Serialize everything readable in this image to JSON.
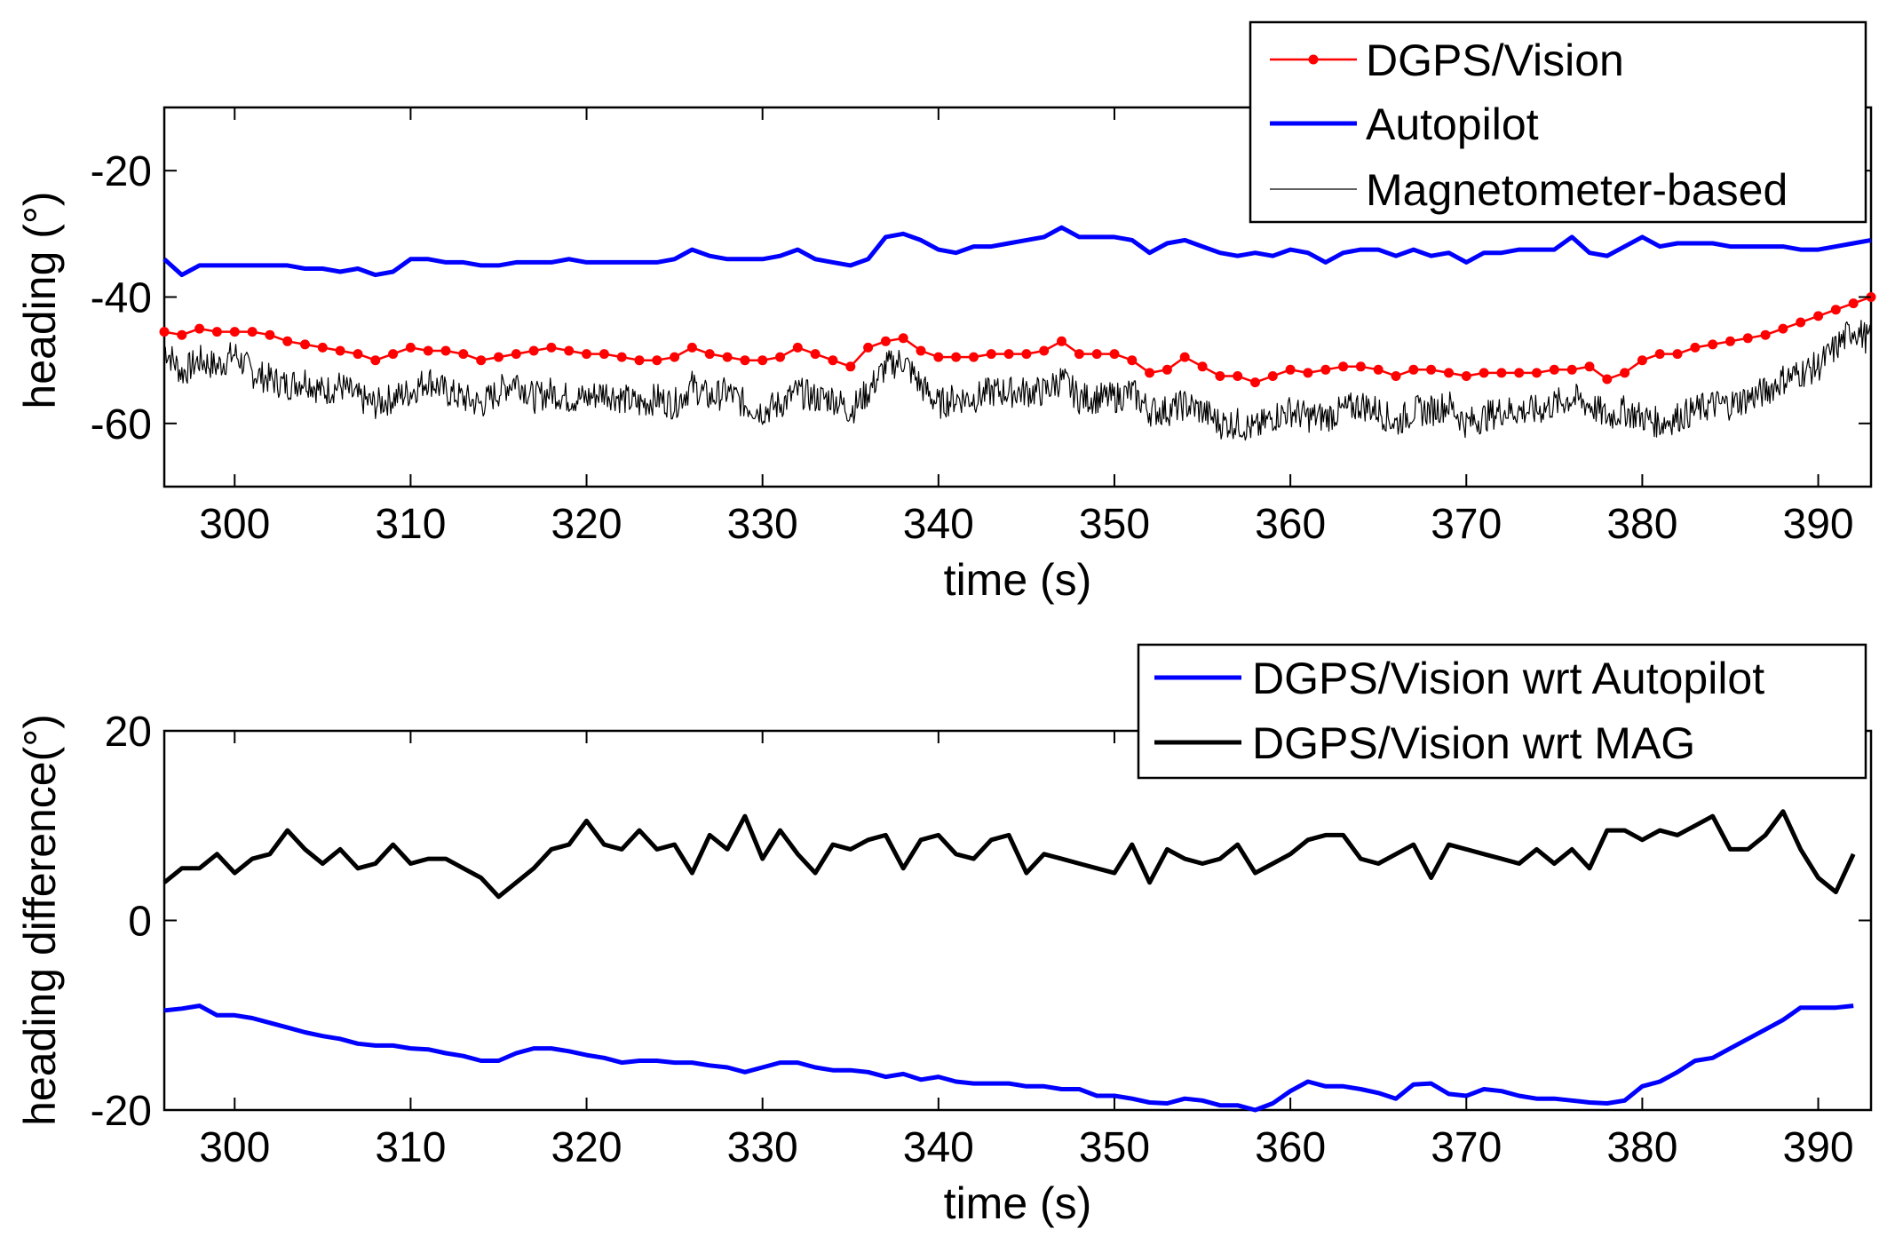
{
  "chart_data": [
    {
      "type": "line",
      "xlabel": "time (s)",
      "ylabel": "heading (°)",
      "xlim": [
        296,
        393
      ],
      "ylim": [
        -70,
        -10
      ],
      "xticks": [
        300,
        310,
        320,
        330,
        340,
        350,
        360,
        370,
        380,
        390
      ],
      "yticks": [
        -20,
        -40,
        -60
      ],
      "xtick_labels": [
        "300",
        "310",
        "320",
        "330",
        "340",
        "350",
        "360",
        "370",
        "380",
        "390"
      ],
      "ytick_labels": [
        "-20",
        "-40",
        "-60"
      ],
      "legend_position": "top-right",
      "series": [
        {
          "name": "DGPS/Vision",
          "color": "#ff0000",
          "marker": "dot",
          "x": [
            296,
            297,
            298,
            299,
            300,
            301,
            302,
            303,
            304,
            305,
            306,
            307,
            308,
            309,
            310,
            311,
            312,
            313,
            314,
            315,
            316,
            317,
            318,
            319,
            320,
            321,
            322,
            323,
            324,
            325,
            326,
            327,
            328,
            329,
            330,
            331,
            332,
            333,
            334,
            335,
            336,
            337,
            338,
            339,
            340,
            341,
            342,
            343,
            344,
            345,
            346,
            347,
            348,
            349,
            350,
            351,
            352,
            353,
            354,
            355,
            356,
            357,
            358,
            359,
            360,
            361,
            362,
            363,
            364,
            365,
            366,
            367,
            368,
            369,
            370,
            371,
            372,
            373,
            374,
            375,
            376,
            377,
            378,
            379,
            380,
            381,
            382,
            383,
            384,
            385,
            386,
            387,
            388,
            389,
            390,
            391,
            392,
            393
          ],
          "y": [
            -45.5,
            -46,
            -45,
            -45.5,
            -45.5,
            -45.5,
            -46,
            -47,
            -47.5,
            -48,
            -48.5,
            -49,
            -50,
            -49,
            -48,
            -48.5,
            -48.5,
            -49,
            -50,
            -49.5,
            -49,
            -48.5,
            -48,
            -48.5,
            -49,
            -49,
            -49.5,
            -50,
            -50,
            -49.5,
            -48,
            -49,
            -49.5,
            -50,
            -50,
            -49.5,
            -48,
            -49,
            -50,
            -51,
            -48,
            -47,
            -46.5,
            -48.5,
            -49.5,
            -49.5,
            -49.5,
            -49,
            -49,
            -49,
            -48.5,
            -47,
            -49,
            -49,
            -49,
            -50,
            -52,
            -51.5,
            -49.5,
            -51,
            -52.5,
            -52.5,
            -53.5,
            -52.5,
            -51.5,
            -52,
            -51.5,
            -51,
            -51,
            -51.5,
            -52.5,
            -51.5,
            -51.5,
            -52,
            -52.5,
            -52,
            -52,
            -52,
            -52,
            -51.5,
            -51.5,
            -51,
            -53,
            -52,
            -50,
            -49,
            -49,
            -48,
            -47.5,
            -47,
            -46.5,
            -46,
            -45,
            -44,
            -43,
            -42,
            -41,
            -40
          ]
        },
        {
          "name": "Autopilot",
          "color": "#0000ff",
          "x": [
            296,
            297,
            298,
            299,
            300,
            301,
            302,
            303,
            304,
            305,
            306,
            307,
            308,
            309,
            310,
            311,
            312,
            313,
            314,
            315,
            316,
            317,
            318,
            319,
            320,
            321,
            322,
            323,
            324,
            325,
            326,
            327,
            328,
            329,
            330,
            331,
            332,
            333,
            334,
            335,
            336,
            337,
            338,
            339,
            340,
            341,
            342,
            343,
            344,
            345,
            346,
            347,
            348,
            349,
            350,
            351,
            352,
            353,
            354,
            355,
            356,
            357,
            358,
            359,
            360,
            361,
            362,
            363,
            364,
            365,
            366,
            367,
            368,
            369,
            370,
            371,
            372,
            373,
            374,
            375,
            376,
            377,
            378,
            379,
            380,
            381,
            382,
            383,
            384,
            385,
            386,
            387,
            388,
            389,
            390,
            391,
            392,
            393
          ],
          "y": [
            -34,
            -36.5,
            -35,
            -35,
            -35,
            -35,
            -35,
            -35,
            -35.5,
            -35.5,
            -36,
            -35.5,
            -36.5,
            -36,
            -34,
            -34,
            -34.5,
            -34.5,
            -35,
            -35,
            -34.5,
            -34.5,
            -34.5,
            -34,
            -34.5,
            -34.5,
            -34.5,
            -34.5,
            -34.5,
            -34,
            -32.5,
            -33.5,
            -34,
            -34,
            -34,
            -33.5,
            -32.5,
            -34,
            -34.5,
            -35,
            -34,
            -30.5,
            -30,
            -31,
            -32.5,
            -33,
            -32,
            -32,
            -31.5,
            -31,
            -30.5,
            -29,
            -30.5,
            -30.5,
            -30.5,
            -31,
            -33,
            -31.5,
            -31,
            -32,
            -33,
            -33.5,
            -33,
            -33.5,
            -32.5,
            -33,
            -34.5,
            -33,
            -32.5,
            -32.5,
            -33.5,
            -32.5,
            -33.5,
            -33,
            -34.5,
            -33,
            -33,
            -32.5,
            -32.5,
            -32.5,
            -30.5,
            -33,
            -33.5,
            -32,
            -30.5,
            -32,
            -31.5,
            -31.5,
            -31.5,
            -32,
            -32,
            -32,
            -32,
            -32.5,
            -32.5,
            -32,
            -31.5,
            -31
          ]
        },
        {
          "name": "Magnetometer-based",
          "color": "#000000",
          "x": [
            296,
            297,
            298,
            299,
            300,
            301,
            302,
            303,
            304,
            305,
            306,
            307,
            308,
            309,
            310,
            311,
            312,
            313,
            314,
            315,
            316,
            317,
            318,
            319,
            320,
            321,
            322,
            323,
            324,
            325,
            326,
            327,
            328,
            329,
            330,
            331,
            332,
            333,
            334,
            335,
            336,
            337,
            338,
            339,
            340,
            341,
            342,
            343,
            344,
            345,
            346,
            347,
            348,
            349,
            350,
            351,
            352,
            353,
            354,
            355,
            356,
            357,
            358,
            359,
            360,
            361,
            362,
            363,
            364,
            365,
            366,
            367,
            368,
            369,
            370,
            371,
            372,
            373,
            374,
            375,
            376,
            377,
            378,
            379,
            380,
            381,
            382,
            383,
            384,
            385,
            386,
            387,
            388,
            389,
            390,
            391,
            392,
            393
          ],
          "y": [
            -48,
            -52,
            -50,
            -51,
            -49,
            -52,
            -53,
            -54,
            -53,
            -55,
            -54,
            -56,
            -57,
            -56,
            -55,
            -53,
            -55,
            -56,
            -57,
            -55,
            -53,
            -56,
            -55,
            -56,
            -56,
            -55,
            -56,
            -57,
            -56,
            -57,
            -54,
            -56,
            -55,
            -57,
            -58,
            -57,
            -55,
            -56,
            -56,
            -58,
            -55,
            -51,
            -50,
            -54,
            -57,
            -56,
            -56,
            -55,
            -55,
            -55,
            -55,
            -53,
            -56,
            -56,
            -56,
            -55,
            -58,
            -58,
            -57,
            -58,
            -60,
            -60,
            -61,
            -59,
            -58,
            -59,
            -59,
            -58,
            -57,
            -58,
            -60,
            -58,
            -58,
            -57,
            -60,
            -59,
            -58,
            -58,
            -58,
            -57,
            -56,
            -57,
            -59,
            -58,
            -59,
            -60,
            -59,
            -58,
            -57,
            -57,
            -56,
            -55,
            -53,
            -52,
            -51,
            -48,
            -45,
            -47
          ]
        }
      ]
    },
    {
      "type": "line",
      "xlabel": "time (s)",
      "ylabel": "heading difference(°)",
      "xlim": [
        296,
        393
      ],
      "ylim": [
        -20,
        20
      ],
      "xticks": [
        300,
        310,
        320,
        330,
        340,
        350,
        360,
        370,
        380,
        390
      ],
      "yticks": [
        20,
        0,
        -20
      ],
      "xtick_labels": [
        "300",
        "310",
        "320",
        "330",
        "340",
        "350",
        "360",
        "370",
        "380",
        "390"
      ],
      "ytick_labels": [
        "20",
        "0",
        "-20"
      ],
      "legend_position": "top-right",
      "series": [
        {
          "name": "DGPS/Vision wrt Autopilot",
          "color": "#0000ff",
          "x": [
            296,
            297,
            298,
            299,
            300,
            301,
            302,
            303,
            304,
            305,
            306,
            307,
            308,
            309,
            310,
            311,
            312,
            313,
            314,
            315,
            316,
            317,
            318,
            319,
            320,
            321,
            322,
            323,
            324,
            325,
            326,
            327,
            328,
            329,
            330,
            331,
            332,
            333,
            334,
            335,
            336,
            337,
            338,
            339,
            340,
            341,
            342,
            343,
            344,
            345,
            346,
            347,
            348,
            349,
            350,
            351,
            352,
            353,
            354,
            355,
            356,
            357,
            358,
            359,
            360,
            361,
            362,
            363,
            364,
            365,
            366,
            367,
            368,
            369,
            370,
            371,
            372,
            373,
            374,
            375,
            376,
            377,
            378,
            379,
            380,
            381,
            382,
            383,
            384,
            385,
            386,
            387,
            388,
            389,
            390,
            391,
            392
          ],
          "y": [
            -9.5,
            -9.3,
            -9,
            -10,
            -10,
            -10.3,
            -10.8,
            -11.3,
            -11.8,
            -12.2,
            -12.5,
            -13,
            -13.2,
            -13.2,
            -13.5,
            -13.6,
            -14,
            -14.3,
            -14.8,
            -14.8,
            -14,
            -13.5,
            -13.5,
            -13.8,
            -14.2,
            -14.5,
            -15,
            -14.8,
            -14.8,
            -15,
            -15,
            -15.3,
            -15.5,
            -16,
            -15.5,
            -15,
            -15,
            -15.5,
            -15.8,
            -15.8,
            -16,
            -16.5,
            -16.2,
            -16.8,
            -16.5,
            -17,
            -17.2,
            -17.2,
            -17.2,
            -17.5,
            -17.5,
            -17.8,
            -17.8,
            -18.5,
            -18.5,
            -18.8,
            -19.2,
            -19.3,
            -18.8,
            -19,
            -19.5,
            -19.5,
            -20,
            -19.3,
            -18,
            -17,
            -17.5,
            -17.5,
            -17.8,
            -18.2,
            -18.8,
            -17.3,
            -17.2,
            -18.3,
            -18.5,
            -17.8,
            -18,
            -18.5,
            -18.8,
            -18.8,
            -19,
            -19.2,
            -19.3,
            -19,
            -17.5,
            -17,
            -16,
            -14.8,
            -14.5,
            -13.5,
            -12.5,
            -11.5,
            -10.5,
            -9.2,
            -9.2,
            -9.2,
            -9
          ]
        },
        {
          "name": "DGPS/Vision wrt MAG",
          "color": "#000000",
          "x": [
            296,
            297,
            298,
            299,
            300,
            301,
            302,
            303,
            304,
            305,
            306,
            307,
            308,
            309,
            310,
            311,
            312,
            313,
            314,
            315,
            316,
            317,
            318,
            319,
            320,
            321,
            322,
            323,
            324,
            325,
            326,
            327,
            328,
            329,
            330,
            331,
            332,
            333,
            334,
            335,
            336,
            337,
            338,
            339,
            340,
            341,
            342,
            343,
            344,
            345,
            346,
            347,
            348,
            349,
            350,
            351,
            352,
            353,
            354,
            355,
            356,
            357,
            358,
            359,
            360,
            361,
            362,
            363,
            364,
            365,
            366,
            367,
            368,
            369,
            370,
            371,
            372,
            373,
            374,
            375,
            376,
            377,
            378,
            379,
            380,
            381,
            382,
            383,
            384,
            385,
            386,
            387,
            388,
            389,
            390,
            391,
            392
          ],
          "y": [
            4,
            5.5,
            5.5,
            7,
            5,
            6.5,
            7,
            9.5,
            7.5,
            6,
            7.5,
            5.5,
            6,
            8,
            6,
            6.5,
            6.5,
            5.5,
            4.5,
            2.5,
            4,
            5.5,
            7.5,
            8,
            10.5,
            8,
            7.5,
            9.5,
            7.5,
            8,
            5,
            9,
            7.5,
            11,
            6.5,
            9.5,
            7,
            5,
            8,
            7.5,
            8.5,
            9,
            5.5,
            8.5,
            9,
            7,
            6.5,
            8.5,
            9,
            5,
            7,
            6.5,
            6,
            5.5,
            5,
            8,
            4,
            7.5,
            6.5,
            6,
            6.5,
            8,
            5,
            6,
            7,
            8.5,
            9,
            9,
            6.5,
            6,
            7,
            8,
            4.5,
            8,
            7.5,
            7,
            6.5,
            6,
            7.5,
            6,
            7.5,
            5.5,
            9.5,
            9.5,
            8.5,
            9.5,
            9,
            10,
            11,
            7.5,
            7.5,
            9,
            11.5,
            7.5,
            4.5,
            3,
            7
          ]
        }
      ]
    }
  ]
}
